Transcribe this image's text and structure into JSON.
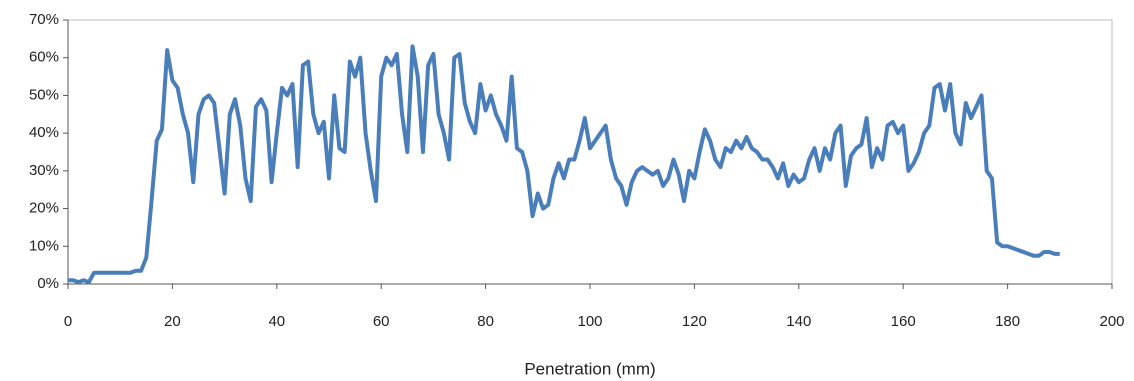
{
  "chart_data": {
    "type": "line",
    "x_label": "Penetration (mm)",
    "x": [
      0,
      1,
      2,
      3,
      4,
      5,
      6,
      7,
      8,
      9,
      10,
      11,
      12,
      13,
      14,
      15,
      16,
      17,
      18,
      19,
      20,
      21,
      22,
      23,
      24,
      25,
      26,
      27,
      28,
      29,
      30,
      31,
      32,
      33,
      34,
      35,
      36,
      37,
      38,
      39,
      40,
      41,
      42,
      43,
      44,
      45,
      46,
      47,
      48,
      49,
      50,
      51,
      52,
      53,
      54,
      55,
      56,
      57,
      58,
      59,
      60,
      61,
      62,
      63,
      64,
      65,
      66,
      67,
      68,
      69,
      70,
      71,
      72,
      73,
      74,
      75,
      76,
      77,
      78,
      79,
      80,
      81,
      82,
      83,
      84,
      85,
      86,
      87,
      88,
      89,
      90,
      91,
      92,
      93,
      94,
      95,
      96,
      97,
      98,
      99,
      100,
      101,
      102,
      103,
      104,
      105,
      106,
      107,
      108,
      109,
      110,
      111,
      112,
      113,
      114,
      115,
      116,
      117,
      118,
      119,
      120,
      121,
      122,
      123,
      124,
      125,
      126,
      127,
      128,
      129,
      130,
      131,
      132,
      133,
      134,
      135,
      136,
      137,
      138,
      139,
      140,
      141,
      142,
      143,
      144,
      145,
      146,
      147,
      148,
      149,
      150,
      151,
      152,
      153,
      154,
      155,
      156,
      157,
      158,
      159,
      160,
      161,
      162,
      163,
      164,
      165,
      166,
      167,
      168,
      169,
      170,
      171,
      172,
      173,
      174,
      175,
      176,
      177,
      178,
      179,
      180,
      181,
      182,
      183,
      184,
      185,
      186,
      187,
      188,
      189,
      190
    ],
    "values": [
      1,
      1,
      0.5,
      1,
      0.5,
      3,
      3,
      3,
      3,
      3,
      3,
      3,
      3,
      3.5,
      3.5,
      7,
      22,
      38,
      41,
      62,
      54,
      52,
      45,
      40,
      27,
      45,
      49,
      50,
      48,
      36,
      24,
      45,
      49,
      42,
      28,
      22,
      47,
      49,
      46,
      27,
      40,
      52,
      50,
      53,
      31,
      58,
      59,
      45,
      40,
      43,
      28,
      50,
      36,
      35,
      59,
      55,
      60,
      40,
      30,
      22,
      55,
      60,
      58,
      61,
      45,
      35,
      63,
      55,
      35,
      58,
      61,
      45,
      40,
      33,
      60,
      61,
      48,
      43,
      40,
      53,
      46,
      50,
      45,
      42,
      38,
      55,
      36,
      35,
      30,
      18,
      24,
      20,
      21,
      28,
      32,
      28,
      33,
      33,
      38,
      44,
      36,
      38,
      40,
      42,
      33,
      28,
      26,
      21,
      27,
      30,
      31,
      30,
      29,
      30,
      26,
      28,
      33,
      29,
      22,
      30,
      28,
      35,
      41,
      38,
      33,
      31,
      36,
      35,
      38,
      36,
      39,
      36,
      35,
      33,
      33,
      31,
      28,
      32,
      26,
      29,
      27,
      28,
      33,
      36,
      30,
      36,
      33,
      40,
      42,
      26,
      34,
      36,
      37,
      44,
      31,
      36,
      33,
      42,
      43,
      40,
      42,
      30,
      32,
      35,
      40,
      42,
      52,
      53,
      46,
      53,
      40,
      37,
      48,
      44,
      47,
      50,
      30,
      28,
      11,
      10,
      10,
      9.5,
      9,
      8.5,
      8,
      7.5,
      7.5,
      8.5,
      8.5,
      8,
      8
    ],
    "color": "#4a7ebb",
    "xlim": [
      0,
      200
    ],
    "xticks": [
      0,
      20,
      40,
      60,
      80,
      100,
      120,
      140,
      160,
      180,
      200
    ],
    "ylim": [
      0,
      70
    ],
    "yticks": [
      {
        "value": 0,
        "label": "0%"
      },
      {
        "value": 10,
        "label": "10%"
      },
      {
        "value": 20,
        "label": "20%"
      },
      {
        "value": 30,
        "label": "30%"
      },
      {
        "value": 40,
        "label": "40%"
      },
      {
        "value": 50,
        "label": "50%"
      },
      {
        "value": 60,
        "label": "60%"
      },
      {
        "value": 70,
        "label": "70%"
      }
    ]
  }
}
